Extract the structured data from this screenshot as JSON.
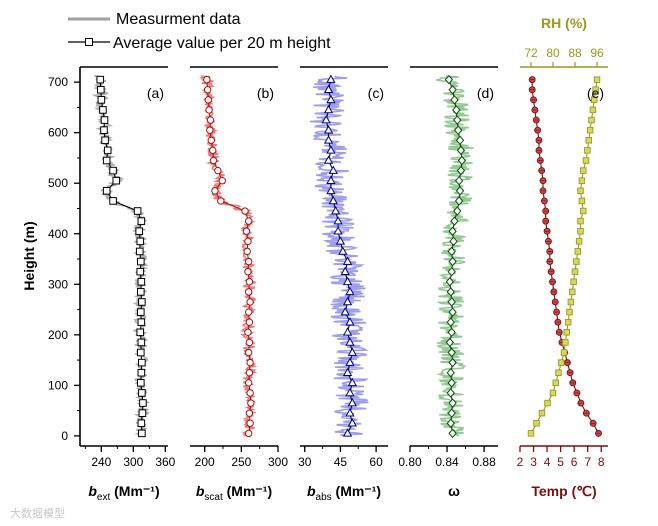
{
  "legend": {
    "measured_label": "Measurment data",
    "average_label": "Average value per 20 m height"
  },
  "watermark": "大数据模型",
  "colors": {
    "measured_gray": "#a0a0a0",
    "scat_red": "#e26464",
    "abs_blue": "#8c8ce6",
    "omega_green": "#7fbf7f",
    "temp_darkred": "#7a0f0f",
    "rh_olive": "#9a9a1e",
    "rh_marker": "#d8d860"
  },
  "chart_data": [
    {
      "type": "line",
      "panel_label": "(a)",
      "xlabel": "b",
      "xlabel_sub": "ext",
      "xlabel_unit": " (Mm⁻¹)",
      "ylabel": "Height (m)",
      "xlim": [
        200,
        365
      ],
      "ylim": [
        -20,
        730
      ],
      "xticks": [
        240,
        300,
        360
      ],
      "tick_labels": [
        "240",
        "300",
        "360"
      ],
      "yticks": [
        0,
        100,
        200,
        300,
        400,
        500,
        600,
        700
      ],
      "y_tick_labels": [
        "0",
        "100",
        "200",
        "300",
        "400",
        "500",
        "600",
        "700"
      ],
      "marker": "square",
      "measured_spread": 12,
      "heights": [
        5,
        25,
        45,
        65,
        85,
        105,
        125,
        145,
        165,
        185,
        205,
        225,
        245,
        265,
        285,
        305,
        325,
        345,
        365,
        385,
        405,
        425,
        445,
        465,
        485,
        505,
        525,
        545,
        565,
        585,
        605,
        625,
        645,
        665,
        685,
        705
      ],
      "values": [
        316,
        315,
        317,
        318,
        316,
        314,
        315,
        316,
        314,
        315,
        313,
        315,
        314,
        316,
        314,
        315,
        313,
        314,
        312,
        313,
        311,
        315,
        308,
        262,
        250,
        268,
        262,
        250,
        252,
        247,
        245,
        246,
        243,
        240,
        239,
        238
      ]
    },
    {
      "type": "line",
      "panel_label": "(b)",
      "xlabel": "b",
      "xlabel_sub": "scat",
      "xlabel_unit": " (Mm⁻¹)",
      "xlim": [
        180,
        300
      ],
      "xticks": [
        200,
        250,
        300
      ],
      "tick_labels": [
        "200",
        "250",
        "300"
      ],
      "marker": "circle",
      "measured_spread": 8,
      "heights": [
        5,
        25,
        45,
        65,
        85,
        105,
        125,
        145,
        165,
        185,
        205,
        225,
        245,
        265,
        285,
        305,
        325,
        345,
        365,
        385,
        405,
        425,
        445,
        465,
        485,
        505,
        525,
        545,
        565,
        585,
        605,
        625,
        645,
        665,
        685,
        705
      ],
      "values": [
        260,
        262,
        261,
        263,
        262,
        260,
        261,
        262,
        260,
        261,
        259,
        261,
        260,
        262,
        260,
        261,
        259,
        260,
        258,
        259,
        257,
        260,
        255,
        222,
        214,
        224,
        218,
        212,
        211,
        209,
        207,
        208,
        206,
        205,
        204,
        203
      ]
    },
    {
      "type": "line",
      "panel_label": "(c)",
      "xlabel": "b",
      "xlabel_sub": "abs",
      "xlabel_unit": " (Mm⁻¹)",
      "xlim": [
        28,
        65
      ],
      "xticks": [
        30,
        45,
        60
      ],
      "tick_labels": [
        "30",
        "45",
        "60"
      ],
      "marker": "triangle",
      "measured_spread": 7,
      "heights": [
        5,
        25,
        45,
        65,
        85,
        105,
        125,
        145,
        165,
        185,
        205,
        225,
        245,
        265,
        285,
        305,
        325,
        345,
        365,
        385,
        405,
        425,
        445,
        465,
        485,
        505,
        525,
        545,
        565,
        585,
        605,
        625,
        645,
        665,
        685,
        705
      ],
      "values": [
        48,
        50,
        49,
        50,
        49,
        50,
        48,
        49,
        50,
        49,
        48,
        49,
        47,
        48,
        49,
        48,
        47,
        48,
        46,
        45,
        44,
        44,
        43,
        42,
        41,
        41,
        42,
        40,
        41,
        40,
        40,
        39,
        40,
        41,
        40,
        41
      ]
    },
    {
      "type": "line",
      "panel_label": "(d)",
      "xlabel": "ω",
      "xlim": [
        0.8,
        0.895
      ],
      "xticks": [
        0.8,
        0.84,
        0.88
      ],
      "tick_labels": [
        "0.80",
        "0.84",
        "0.88"
      ],
      "marker": "diamond",
      "measured_spread": 0.014,
      "heights": [
        5,
        25,
        45,
        65,
        85,
        105,
        125,
        145,
        165,
        185,
        205,
        225,
        245,
        265,
        285,
        305,
        325,
        345,
        365,
        385,
        405,
        425,
        445,
        465,
        485,
        505,
        525,
        545,
        565,
        585,
        605,
        625,
        645,
        665,
        685,
        705
      ],
      "values": [
        0.846,
        0.844,
        0.845,
        0.846,
        0.844,
        0.845,
        0.844,
        0.846,
        0.845,
        0.843,
        0.845,
        0.844,
        0.846,
        0.845,
        0.844,
        0.843,
        0.845,
        0.846,
        0.845,
        0.847,
        0.846,
        0.848,
        0.851,
        0.853,
        0.854,
        0.853,
        0.855,
        0.856,
        0.855,
        0.854,
        0.852,
        0.851,
        0.85,
        0.848,
        0.846,
        0.842
      ]
    },
    {
      "type": "line",
      "panel_label": "(e)",
      "xlabel": "Temp (℃)",
      "xlim": [
        2,
        8.5
      ],
      "xticks": [
        2,
        3,
        4,
        5,
        6,
        7,
        8
      ],
      "tick_labels": [
        "2",
        "3",
        "4",
        "5",
        "6",
        "7",
        "8"
      ],
      "top_axis_label": "RH (%)",
      "top_xlim": [
        68,
        100
      ],
      "top_xticks": [
        72,
        80,
        88,
        96
      ],
      "top_tick_labels": [
        "72",
        "80",
        "88",
        "96"
      ],
      "series": [
        {
          "name": "Temperature",
          "marker": "circle",
          "heights": [
            5,
            25,
            45,
            65,
            85,
            105,
            125,
            145,
            165,
            185,
            205,
            225,
            245,
            265,
            285,
            305,
            325,
            345,
            365,
            385,
            405,
            425,
            445,
            465,
            485,
            505,
            525,
            545,
            565,
            585,
            605,
            625,
            645,
            665,
            685,
            705
          ],
          "values": [
            7.8,
            7.4,
            6.9,
            6.5,
            6.2,
            5.9,
            5.7,
            5.5,
            5.3,
            5.1,
            4.9,
            4.8,
            4.7,
            4.6,
            4.5,
            4.4,
            4.3,
            4.2,
            4.2,
            4.1,
            4.0,
            3.9,
            3.9,
            3.8,
            3.7,
            3.7,
            3.6,
            3.5,
            3.4,
            3.4,
            3.3,
            3.2,
            3.1,
            3.0,
            2.9,
            2.9
          ]
        },
        {
          "name": "RH",
          "marker": "square",
          "heights": [
            5,
            25,
            45,
            65,
            85,
            105,
            125,
            145,
            165,
            185,
            205,
            225,
            245,
            265,
            285,
            305,
            325,
            345,
            365,
            385,
            405,
            425,
            445,
            465,
            485,
            505,
            525,
            545,
            565,
            585,
            605,
            625,
            645,
            665,
            685,
            705
          ],
          "values": [
            72,
            74,
            76,
            78,
            80,
            81,
            82,
            83,
            84,
            84.5,
            85,
            85.5,
            86,
            86.5,
            87,
            87.5,
            88,
            88.5,
            89,
            89.5,
            90,
            90,
            91,
            90.5,
            90,
            90.5,
            91,
            92,
            92.5,
            93,
            93.5,
            94,
            94.5,
            95,
            95.5,
            96
          ]
        }
      ]
    }
  ]
}
